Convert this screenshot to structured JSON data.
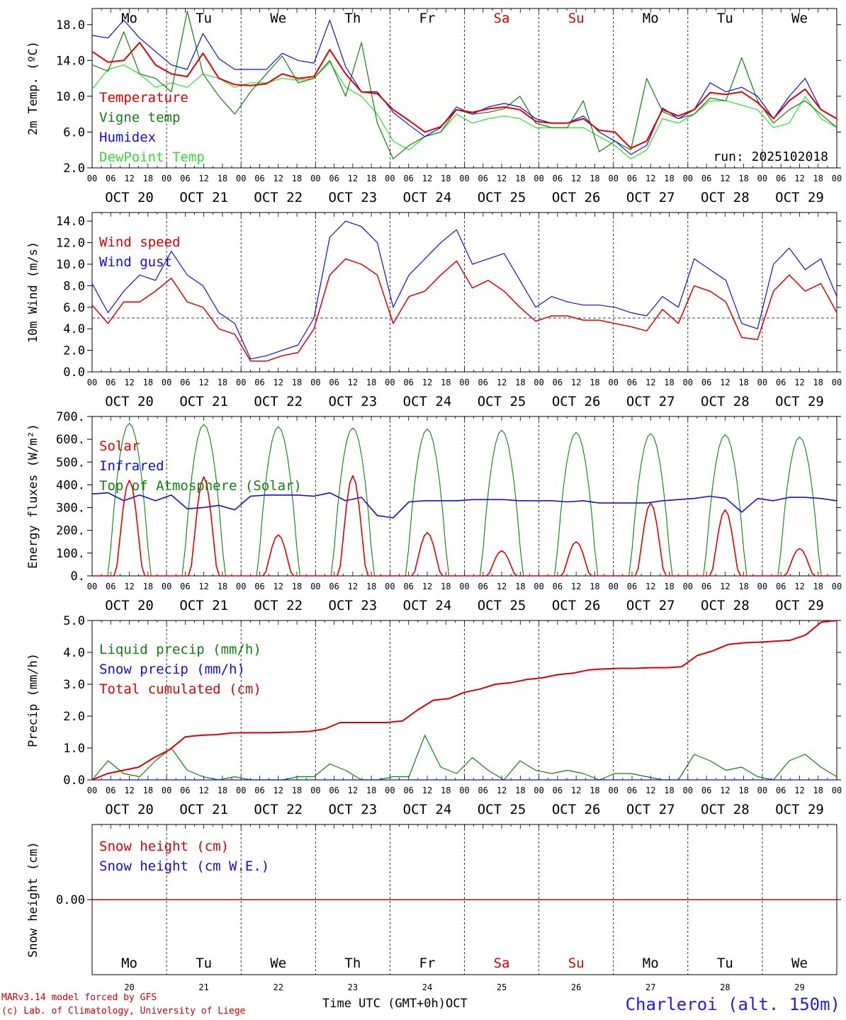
{
  "colors": {
    "red": "#e00000",
    "green": "#108010",
    "blue": "#1010d8",
    "lightgreen": "#30e030",
    "black": "#000000"
  },
  "day_names": [
    "Mo",
    "Tu",
    "We",
    "Th",
    "Fr",
    "Sa",
    "Su",
    "Mo",
    "Tu",
    "We"
  ],
  "weekend_days": [
    5,
    6
  ],
  "date_labels": [
    "OCT 20",
    "OCT 21",
    "OCT 22",
    "OCT 23",
    "OCT 24",
    "OCT 25",
    "OCT 26",
    "OCT 27",
    "OCT 28",
    "OCT 29"
  ],
  "hour_ticks": [
    "00",
    "06",
    "12",
    "18"
  ],
  "hour_end": "00",
  "bottom_day_numbers": [
    "20",
    "21",
    "22",
    "23",
    "24",
    "25",
    "26",
    "27",
    "28",
    "29"
  ],
  "footer": {
    "model": "MARv3.14 model forced by GFS",
    "copyright": "(c) Lab. of Climatology, University of Liege",
    "axis": "Time UTC (GMT+0h)",
    "month": "OCT",
    "station": "Charleroi (alt. 150m)"
  },
  "chart_data": [
    {
      "id": "temp",
      "type": "line",
      "title": "",
      "ylabel": "2m Temp. (ºC)",
      "ylim": [
        2.0,
        19.8
      ],
      "yticks": [
        2.0,
        6.0,
        10.0,
        14.0,
        18.0
      ],
      "ytick_labels": [
        "2.0",
        "6.0",
        "10.0",
        "14.0",
        "18.0"
      ],
      "annotation": "run: 2025102018",
      "x_unit": "hours since 2025-10-20 00 UTC (knot every 6h)",
      "series": [
        {
          "name": "Temperature",
          "color": "red",
          "values": [
            15.0,
            13.8,
            14.0,
            16.0,
            13.5,
            12.5,
            12.2,
            14.8,
            12.0,
            11.3,
            11.2,
            11.4,
            12.5,
            12.0,
            12.2,
            15.2,
            12.5,
            10.5,
            10.3,
            8.5,
            7.3,
            6.0,
            6.6,
            8.5,
            8.2,
            8.6,
            8.8,
            8.5,
            7.2,
            7.0,
            7.0,
            7.5,
            6.2,
            6.0,
            4.2,
            5.0,
            8.5,
            7.8,
            8.5,
            10.4,
            10.2,
            10.5,
            9.3,
            7.5,
            9.5,
            10.8,
            8.5,
            7.5
          ]
        },
        {
          "name": "Vigne temp",
          "color": "green",
          "values": [
            13.5,
            12.8,
            17.2,
            12.5,
            12.0,
            10.5,
            19.5,
            12.5,
            10.0,
            8.0,
            10.5,
            12.5,
            14.5,
            11.5,
            12.0,
            14.0,
            10.0,
            16.0,
            7.0,
            3.0,
            4.5,
            5.5,
            6.0,
            8.5,
            8.0,
            8.2,
            8.6,
            10.0,
            7.0,
            6.5,
            6.5,
            9.5,
            3.8,
            5.0,
            4.0,
            12.0,
            8.3,
            7.5,
            8.0,
            9.8,
            9.5,
            14.3,
            9.5,
            7.0,
            8.5,
            9.5,
            8.0,
            6.5
          ]
        },
        {
          "name": "Humidex",
          "color": "blue",
          "values": [
            16.8,
            16.5,
            18.5,
            16.5,
            15.0,
            13.5,
            13.0,
            17.0,
            14.2,
            13.0,
            13.0,
            13.0,
            14.8,
            14.0,
            13.7,
            18.5,
            13.3,
            10.5,
            10.5,
            8.2,
            6.8,
            5.5,
            6.5,
            8.8,
            8.0,
            8.8,
            9.2,
            8.8,
            7.5,
            7.0,
            7.0,
            7.8,
            6.0,
            5.0,
            3.5,
            4.5,
            8.7,
            7.5,
            8.5,
            11.5,
            10.5,
            11.0,
            10.0,
            7.5,
            10.0,
            12.0,
            8.5,
            7.5
          ]
        },
        {
          "name": "DewPoint Temp",
          "color": "lightgreen",
          "values": [
            10.8,
            13.0,
            13.5,
            12.5,
            11.0,
            11.5,
            11.0,
            12.5,
            12.0,
            11.0,
            11.5,
            11.5,
            12.0,
            11.8,
            12.0,
            13.8,
            11.0,
            10.0,
            8.0,
            5.0,
            4.0,
            5.5,
            6.0,
            8.0,
            7.0,
            7.5,
            7.8,
            7.5,
            6.5,
            6.5,
            6.5,
            6.5,
            5.5,
            4.5,
            3.0,
            4.0,
            7.5,
            7.0,
            8.0,
            9.5,
            9.5,
            9.0,
            8.5,
            6.5,
            7.0,
            10.0,
            7.5,
            6.5
          ]
        }
      ]
    },
    {
      "id": "wind",
      "type": "line",
      "ylabel": "10m Wind (m/s)",
      "ylim": [
        0.0,
        14.8
      ],
      "yticks": [
        0,
        2,
        4,
        6,
        8,
        10,
        12,
        14
      ],
      "ytick_labels": [
        "0.0",
        "2.0",
        "4.0",
        "6.0",
        "8.0",
        "10.0",
        "12.0",
        "14.0"
      ],
      "reference_line": 5.0,
      "series": [
        {
          "name": "Wind speed",
          "color": "red",
          "values": [
            6.2,
            4.5,
            6.5,
            6.5,
            7.5,
            8.7,
            6.5,
            6.0,
            4.0,
            3.5,
            1.0,
            1.0,
            1.5,
            1.8,
            4.0,
            9.0,
            10.5,
            10.0,
            9.0,
            4.5,
            7.0,
            7.5,
            9.0,
            10.3,
            7.8,
            8.5,
            7.5,
            6.0,
            4.7,
            5.2,
            5.2,
            4.8,
            4.8,
            4.5,
            4.2,
            3.8,
            5.8,
            4.5,
            8.0,
            7.5,
            6.5,
            3.2,
            3.0,
            7.5,
            9.0,
            7.5,
            8.2,
            5.5
          ]
        },
        {
          "name": "Wind gust",
          "color": "blue",
          "values": [
            8.2,
            5.5,
            7.5,
            9.0,
            8.5,
            11.2,
            9.0,
            8.0,
            5.5,
            4.5,
            1.2,
            1.5,
            2.0,
            2.5,
            5.0,
            12.5,
            14.0,
            13.5,
            12.0,
            6.0,
            9.0,
            10.5,
            12.0,
            13.2,
            10.0,
            10.5,
            11.0,
            8.5,
            6.0,
            7.0,
            6.5,
            6.2,
            6.2,
            6.0,
            5.5,
            5.2,
            7.0,
            6.0,
            10.5,
            9.5,
            8.5,
            4.5,
            4.0,
            10.0,
            11.5,
            9.5,
            10.5,
            7.0
          ]
        }
      ]
    },
    {
      "id": "energy",
      "type": "line",
      "ylabel": "Energy fluxes (W/m²)",
      "ylim": [
        0,
        700
      ],
      "yticks": [
        0,
        100,
        200,
        300,
        400,
        500,
        600,
        700
      ],
      "ytick_labels": [
        "0.",
        "100.",
        "200.",
        "300.",
        "400.",
        "500.",
        "600.",
        "700."
      ],
      "series": [
        {
          "name": "Solar",
          "color": "red",
          "peaks": [
            420,
            435,
            180,
            440,
            190,
            110,
            150,
            320,
            290,
            120
          ]
        },
        {
          "name": "Infrared",
          "color": "blue",
          "values": [
            360,
            365,
            330,
            355,
            330,
            355,
            295,
            300,
            310,
            290,
            350,
            355,
            355,
            355,
            350,
            365,
            330,
            345,
            265,
            255,
            325,
            330,
            330,
            330,
            335,
            335,
            335,
            330,
            330,
            330,
            325,
            330,
            320,
            320,
            320,
            320,
            330,
            335,
            340,
            350,
            340,
            280,
            340,
            330,
            345,
            345,
            340,
            330
          ]
        },
        {
          "name": "Top of Atmosphere (Solar)",
          "color": "green",
          "peaks": [
            670,
            665,
            655,
            650,
            645,
            640,
            630,
            625,
            620,
            610
          ]
        }
      ]
    },
    {
      "id": "precip",
      "type": "line",
      "ylabel": "Precip (mm/h)",
      "ylim": [
        0.0,
        5.0
      ],
      "yticks": [
        0,
        1,
        2,
        3,
        4,
        5
      ],
      "ytick_labels": [
        "0.0",
        "1.0",
        "2.0",
        "3.0",
        "4.0",
        "5.0"
      ],
      "series": [
        {
          "name": "Liquid precip (mm/h)",
          "color": "green",
          "values": [
            0.0,
            0.6,
            0.2,
            0.1,
            0.6,
            1.0,
            0.3,
            0.1,
            0.0,
            0.1,
            0.0,
            0.0,
            0.0,
            0.1,
            0.1,
            0.5,
            0.3,
            0.0,
            0.0,
            0.1,
            0.1,
            1.4,
            0.4,
            0.2,
            0.7,
            0.3,
            0.0,
            0.6,
            0.3,
            0.2,
            0.3,
            0.2,
            0.0,
            0.2,
            0.2,
            0.1,
            0.0,
            0.0,
            0.8,
            0.6,
            0.3,
            0.4,
            0.1,
            0.0,
            0.6,
            0.8,
            0.4,
            0.1
          ]
        },
        {
          "name": "Snow precip (mm/h)",
          "color": "blue",
          "values": [
            0,
            0,
            0,
            0,
            0,
            0,
            0,
            0,
            0,
            0,
            0,
            0,
            0,
            0,
            0,
            0,
            0,
            0,
            0,
            0,
            0,
            0,
            0,
            0,
            0,
            0,
            0,
            0,
            0,
            0,
            0,
            0,
            0,
            0,
            0,
            0,
            0,
            0,
            0,
            0,
            0,
            0,
            0,
            0,
            0,
            0,
            0,
            0
          ]
        },
        {
          "name": "Total cumulated (cm)",
          "color": "red",
          "values": [
            0.0,
            0.2,
            0.3,
            0.4,
            0.7,
            0.95,
            1.35,
            1.4,
            1.42,
            1.47,
            1.48,
            1.48,
            1.49,
            1.5,
            1.52,
            1.6,
            1.8,
            1.8,
            1.8,
            1.8,
            1.85,
            2.2,
            2.5,
            2.55,
            2.75,
            2.85,
            3.0,
            3.05,
            3.15,
            3.2,
            3.3,
            3.35,
            3.45,
            3.48,
            3.5,
            3.5,
            3.52,
            3.52,
            3.55,
            3.9,
            4.05,
            4.25,
            4.3,
            4.32,
            4.35,
            4.38,
            4.55,
            4.95,
            5.0
          ]
        }
      ]
    },
    {
      "id": "snow",
      "type": "line",
      "ylabel": "Snow height (cm)",
      "ylim": [
        -1,
        1
      ],
      "yticks": [
        0
      ],
      "ytick_labels": [
        "0.00"
      ],
      "series": [
        {
          "name": "Snow height (cm)",
          "color": "red",
          "values": [
            0,
            0
          ]
        },
        {
          "name": "Snow height (cm W.E.)",
          "color": "blue",
          "values": [
            0,
            0
          ]
        }
      ]
    }
  ]
}
